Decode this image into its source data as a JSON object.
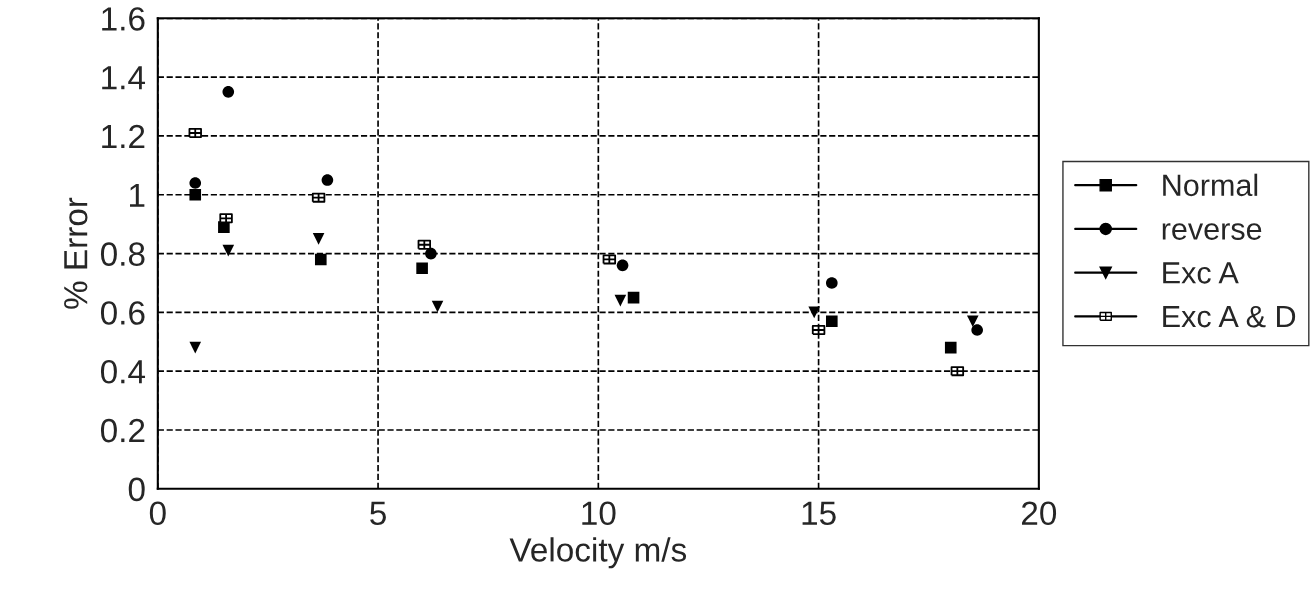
{
  "chart_data": {
    "type": "scatter",
    "xlabel": "Velocity m/s",
    "ylabel": "% Error",
    "xlim": [
      0,
      20
    ],
    "xticks": [
      0,
      5,
      10,
      15,
      20
    ],
    "ylim": [
      0,
      1.6
    ],
    "yticks": [
      0,
      0.2,
      0.4,
      0.6,
      0.8,
      1,
      1.2,
      1.4,
      1.6
    ],
    "grid": true,
    "legend": "right",
    "series": [
      {
        "name": "Normal",
        "color": "#000000",
        "marker": "square",
        "x": [
          0.85,
          1.5,
          3.7,
          6.0,
          10.8,
          15.3,
          18.0
        ],
        "values": [
          1.0,
          0.89,
          0.78,
          0.75,
          0.65,
          0.57,
          0.48
        ]
      },
      {
        "name": "reverse",
        "color": "#000000",
        "marker": "circle",
        "x": [
          0.85,
          1.6,
          3.85,
          6.2,
          10.55,
          15.3,
          18.6
        ],
        "values": [
          1.04,
          1.35,
          1.05,
          0.8,
          0.76,
          0.7,
          0.54
        ]
      },
      {
        "name": "Exc A",
        "color": "#000000",
        "marker": "triangle",
        "x": [
          0.85,
          1.6,
          3.65,
          6.35,
          10.5,
          14.9,
          18.5
        ],
        "values": [
          0.48,
          0.81,
          0.85,
          0.62,
          0.64,
          0.6,
          0.57
        ]
      },
      {
        "name": "Exc A & D",
        "color": "#000000",
        "marker": "cross",
        "x": [
          0.85,
          1.55,
          3.65,
          6.05,
          10.25,
          15.0,
          18.15
        ],
        "values": [
          1.21,
          0.92,
          0.99,
          0.83,
          0.78,
          0.54,
          0.4
        ]
      }
    ]
  }
}
